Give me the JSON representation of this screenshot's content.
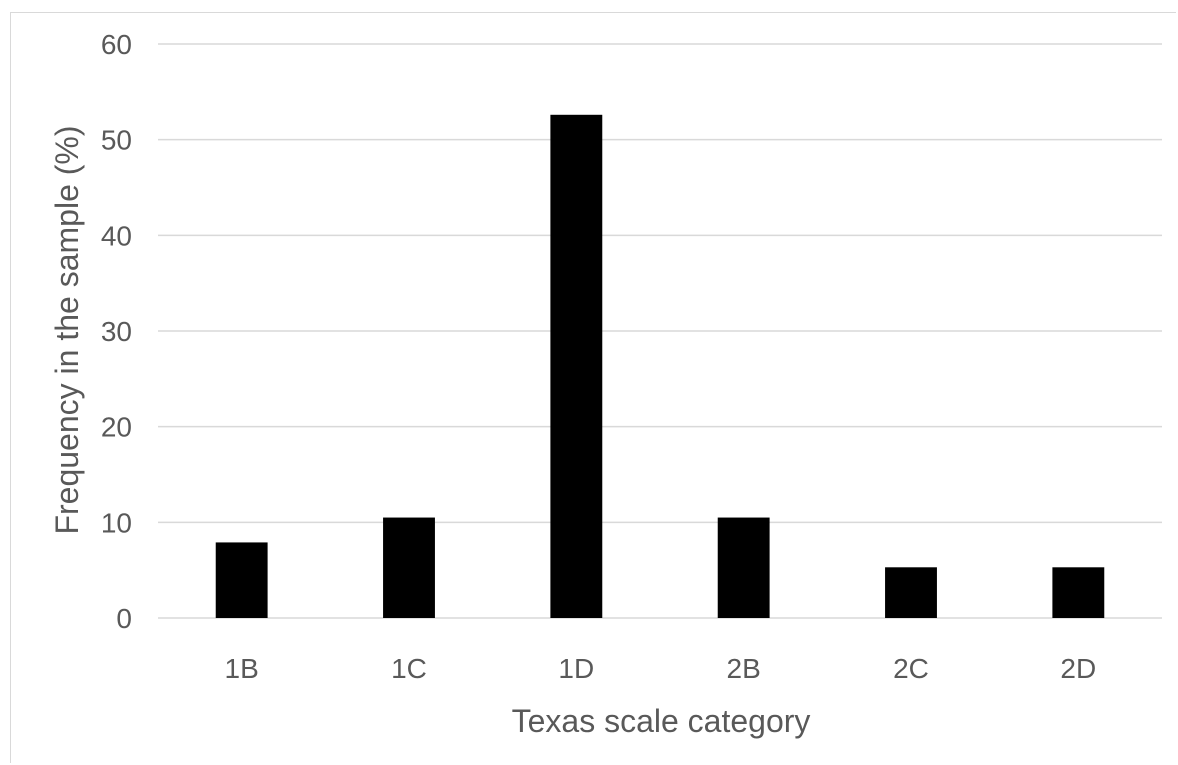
{
  "chart_data": {
    "type": "bar",
    "categories": [
      "1B",
      "1C",
      "1D",
      "2B",
      "2C",
      "2D"
    ],
    "values": [
      7.9,
      10.5,
      52.6,
      10.5,
      5.3,
      5.3
    ],
    "title": "",
    "xlabel": "Texas scale category",
    "ylabel": "Frequency in the sample (%)",
    "ylim": [
      0,
      60
    ],
    "yticks": [
      "0",
      "10",
      "20",
      "30",
      "40",
      "50",
      "60"
    ],
    "grid": true,
    "legend": "none",
    "colors": {
      "bar": "#000000",
      "grid": "#d9d9d9",
      "tick_label": "#595959",
      "axis_label": "#595959"
    }
  }
}
